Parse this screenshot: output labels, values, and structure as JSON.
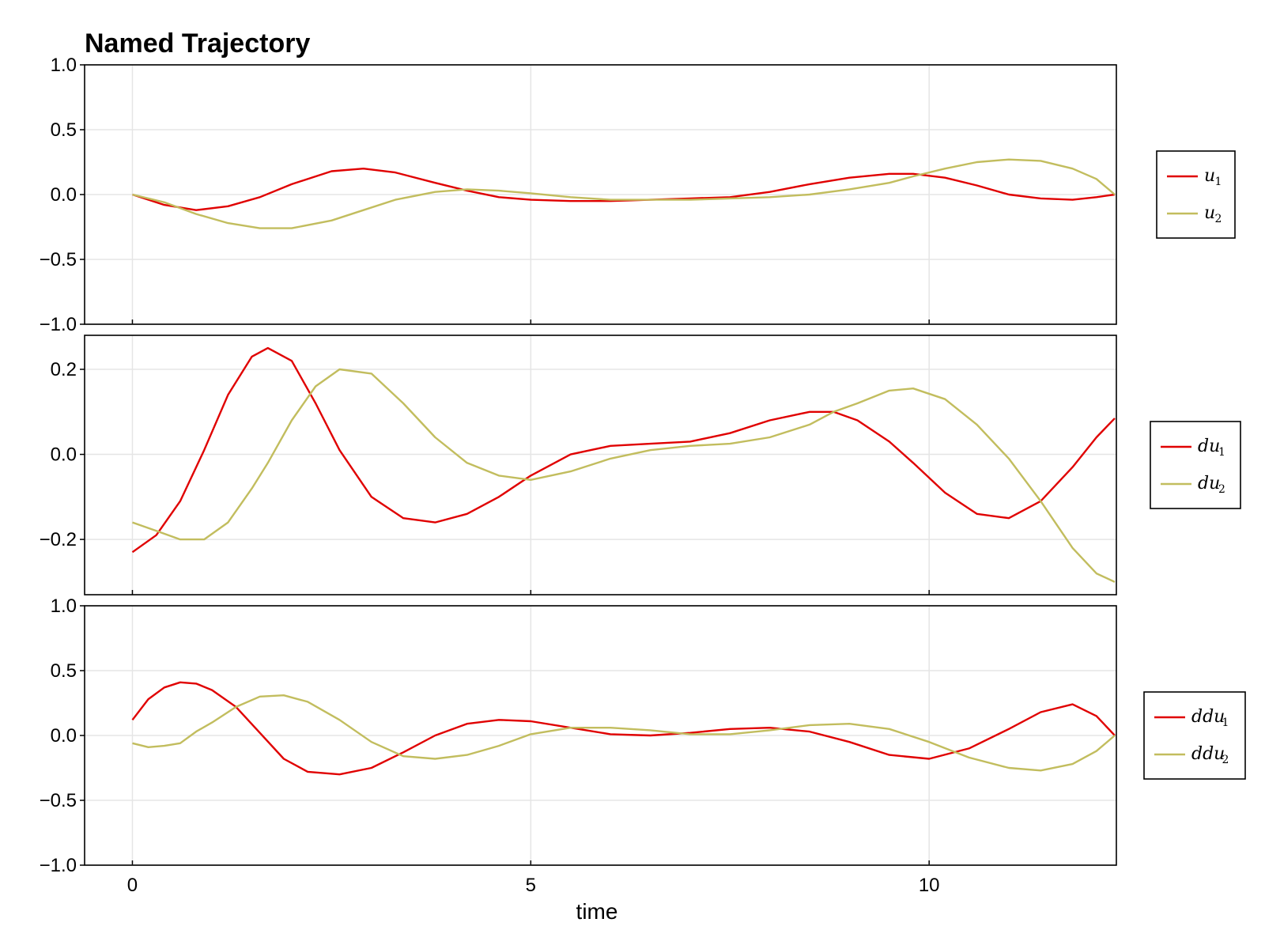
{
  "chart_data": {
    "type": "line",
    "title": "Named Trajectory",
    "xlabel": "time",
    "xlim": [
      -0.6,
      12.35
    ],
    "xticks": [
      0,
      5,
      10
    ],
    "xtick_labels": [
      "0",
      "5",
      "10"
    ],
    "grid": true,
    "legend_position": "right",
    "colors": {
      "red": "#e00000",
      "olive": "#c2bd5e"
    },
    "panels": [
      {
        "name": "u",
        "ylim": [
          -1.0,
          1.0
        ],
        "yticks": [
          1.0,
          0.5,
          0.0,
          -0.5,
          -1.0
        ],
        "ytick_labels": [
          "1.0",
          "0.5",
          "0.0",
          "−0.5",
          "−1.0"
        ],
        "x": [
          0,
          0.4,
          0.8,
          1.2,
          1.6,
          2.0,
          2.5,
          2.9,
          3.3,
          3.8,
          4.2,
          4.6,
          5.0,
          5.5,
          6.0,
          6.5,
          7.0,
          7.5,
          8.0,
          8.5,
          9.0,
          9.5,
          9.8,
          10.2,
          10.6,
          11.0,
          11.4,
          11.8,
          12.1,
          12.33
        ],
        "series": [
          {
            "legend": "u",
            "sub": "1",
            "color": "#e00000",
            "values": [
              0.0,
              -0.08,
              -0.12,
              -0.09,
              -0.02,
              0.08,
              0.18,
              0.2,
              0.17,
              0.09,
              0.03,
              -0.02,
              -0.04,
              -0.05,
              -0.05,
              -0.04,
              -0.03,
              -0.02,
              0.02,
              0.08,
              0.13,
              0.16,
              0.16,
              0.13,
              0.07,
              0.0,
              -0.03,
              -0.04,
              -0.02,
              0.0
            ]
          },
          {
            "legend": "u",
            "sub": "2",
            "color": "#c2bd5e",
            "values": [
              0.0,
              -0.06,
              -0.15,
              -0.22,
              -0.26,
              -0.26,
              -0.2,
              -0.12,
              -0.04,
              0.02,
              0.04,
              0.03,
              0.01,
              -0.02,
              -0.04,
              -0.04,
              -0.04,
              -0.03,
              -0.02,
              0.0,
              0.04,
              0.09,
              0.14,
              0.2,
              0.25,
              0.27,
              0.26,
              0.2,
              0.12,
              0.0
            ]
          }
        ]
      },
      {
        "name": "du",
        "ylim": [
          -0.33,
          0.28
        ],
        "yticks": [
          0.2,
          0.0,
          -0.2
        ],
        "ytick_labels": [
          "0.2",
          "0.0",
          "−0.2"
        ],
        "x": [
          0,
          0.3,
          0.6,
          0.9,
          1.2,
          1.5,
          1.7,
          2.0,
          2.3,
          2.6,
          3.0,
          3.4,
          3.8,
          4.2,
          4.6,
          5.0,
          5.5,
          6.0,
          6.5,
          7.0,
          7.5,
          8.0,
          8.5,
          8.8,
          9.1,
          9.5,
          9.8,
          10.2,
          10.6,
          11.0,
          11.4,
          11.8,
          12.1,
          12.33
        ],
        "series": [
          {
            "legend": "du",
            "sub": "1",
            "color": "#e00000",
            "values": [
              -0.23,
              -0.19,
              -0.11,
              0.01,
              0.14,
              0.23,
              0.25,
              0.22,
              0.12,
              0.01,
              -0.1,
              -0.15,
              -0.16,
              -0.14,
              -0.1,
              -0.05,
              0.0,
              0.02,
              0.025,
              0.03,
              0.05,
              0.08,
              0.1,
              0.1,
              0.08,
              0.03,
              -0.02,
              -0.09,
              -0.14,
              -0.15,
              -0.11,
              -0.03,
              0.04,
              0.085
            ]
          },
          {
            "legend": "du",
            "sub": "2",
            "color": "#c2bd5e",
            "values": [
              -0.16,
              -0.18,
              -0.2,
              -0.2,
              -0.16,
              -0.08,
              -0.02,
              0.08,
              0.16,
              0.2,
              0.19,
              0.12,
              0.04,
              -0.02,
              -0.05,
              -0.06,
              -0.04,
              -0.01,
              0.01,
              0.02,
              0.025,
              0.04,
              0.07,
              0.1,
              0.12,
              0.15,
              0.155,
              0.13,
              0.07,
              -0.01,
              -0.11,
              -0.22,
              -0.28,
              -0.3
            ]
          }
        ]
      },
      {
        "name": "ddu",
        "ylim": [
          -1.0,
          1.0
        ],
        "yticks": [
          1.0,
          0.5,
          0.0,
          -0.5,
          -1.0
        ],
        "ytick_labels": [
          "1.0",
          "0.5",
          "0.0",
          "−0.5",
          "−1.0"
        ],
        "x": [
          0,
          0.2,
          0.4,
          0.6,
          0.8,
          1.0,
          1.3,
          1.6,
          1.9,
          2.2,
          2.6,
          3.0,
          3.4,
          3.8,
          4.2,
          4.6,
          5.0,
          5.5,
          6.0,
          6.5,
          7.0,
          7.5,
          8.0,
          8.5,
          9.0,
          9.5,
          10.0,
          10.5,
          11.0,
          11.4,
          11.8,
          12.1,
          12.33
        ],
        "series": [
          {
            "legend": "ddu",
            "sub": "1",
            "color": "#e00000",
            "values": [
              0.12,
              0.28,
              0.37,
              0.41,
              0.4,
              0.35,
              0.22,
              0.02,
              -0.18,
              -0.28,
              -0.3,
              -0.25,
              -0.13,
              0.0,
              0.09,
              0.12,
              0.11,
              0.06,
              0.01,
              0.0,
              0.02,
              0.05,
              0.06,
              0.03,
              -0.05,
              -0.15,
              -0.18,
              -0.1,
              0.05,
              0.18,
              0.24,
              0.15,
              0.0
            ]
          },
          {
            "legend": "ddu",
            "sub": "2",
            "color": "#c2bd5e",
            "values": [
              -0.06,
              -0.09,
              -0.08,
              -0.06,
              0.03,
              0.1,
              0.22,
              0.3,
              0.31,
              0.26,
              0.12,
              -0.05,
              -0.16,
              -0.18,
              -0.15,
              -0.08,
              0.01,
              0.06,
              0.06,
              0.04,
              0.01,
              0.01,
              0.04,
              0.08,
              0.09,
              0.05,
              -0.05,
              -0.17,
              -0.25,
              -0.27,
              -0.22,
              -0.12,
              0.0
            ]
          }
        ]
      }
    ]
  }
}
